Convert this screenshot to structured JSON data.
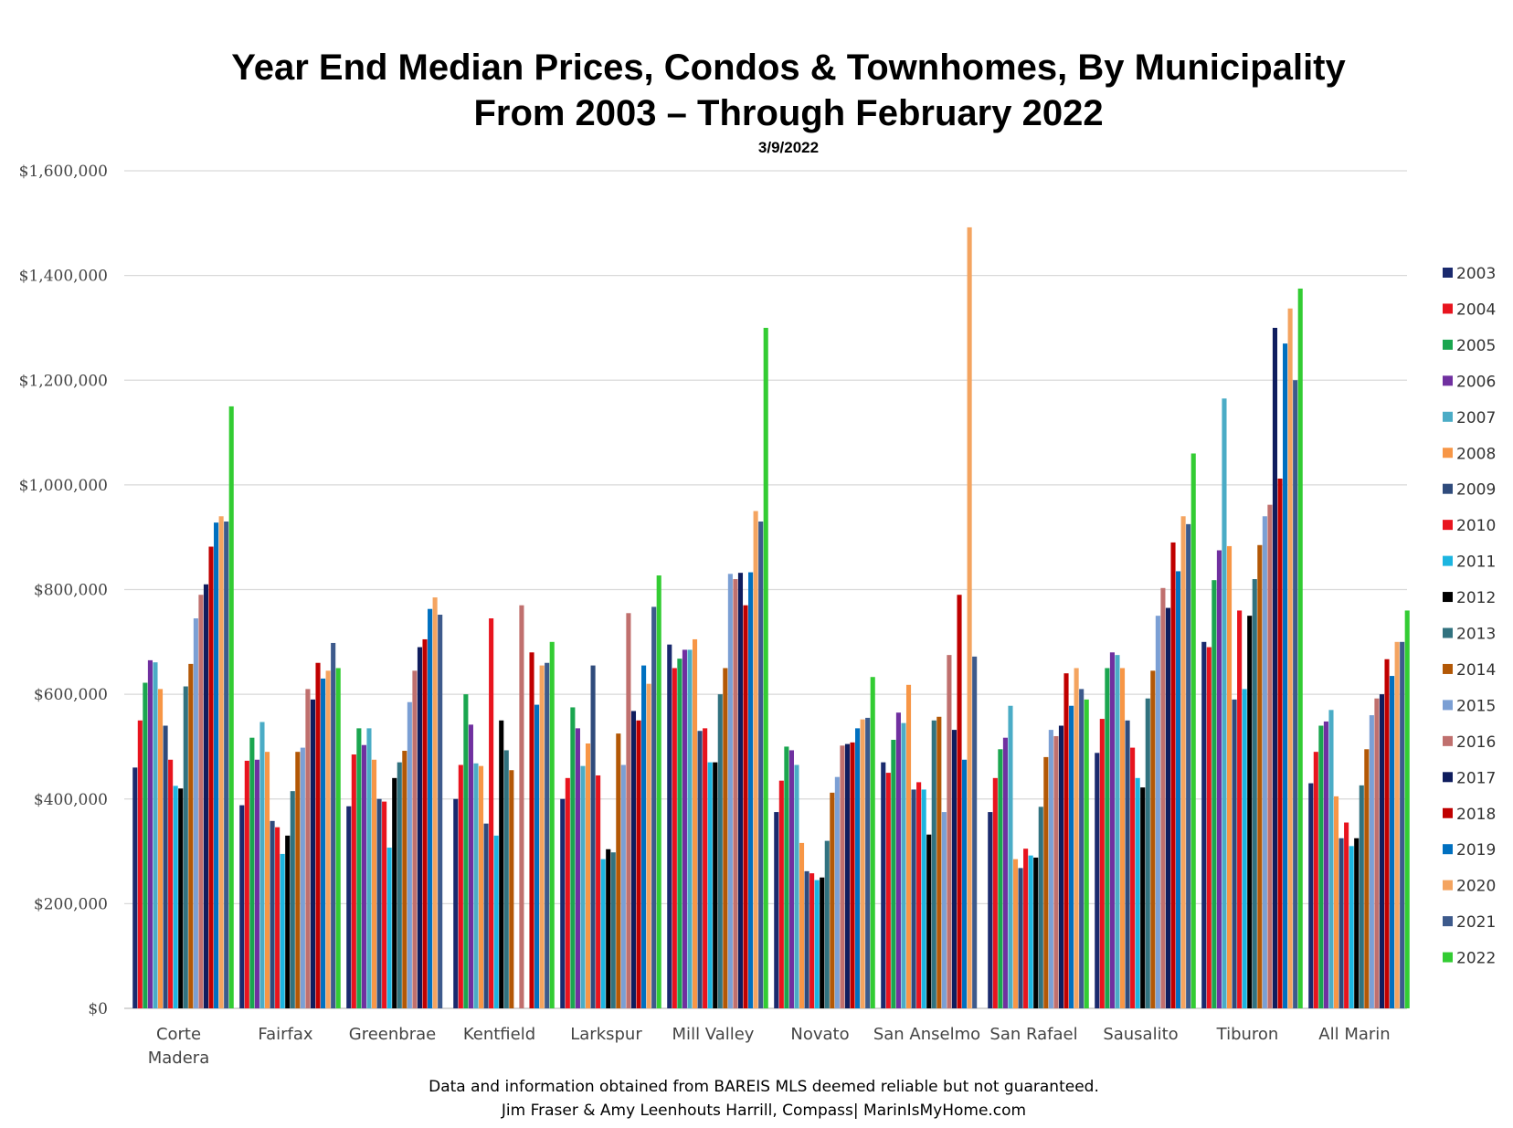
{
  "chart_data": {
    "type": "bar",
    "title_line1": "Year End Median Prices, Condos & Townhomes, By Municipality",
    "title_line2": "From 2003 – Through February 2022",
    "subtitle": "3/9/2022",
    "footer_line1": "Data and information obtained from BAREIS MLS deemed reliable but not guaranteed.",
    "footer_line2": "Jim Fraser & Amy Leenhouts Harrill, Compass| MarinIsMyHome.com",
    "ylim": [
      0,
      1600000
    ],
    "yticks": [
      0,
      200000,
      400000,
      600000,
      800000,
      1000000,
      1200000,
      1400000,
      1600000
    ],
    "ytick_labels": [
      "$0",
      "$200,000",
      "$400,000",
      "$600,000",
      "$800,000",
      "$1,000,000",
      "$1,200,000",
      "$1,400,000",
      "$1,600,000"
    ],
    "grid": true,
    "legend_position": "right",
    "categories": [
      "Corte\nMadera",
      "Fairfax",
      "Greenbrae",
      "Kentfield",
      "Larkspur",
      "Mill Valley",
      "Novato",
      "San Anselmo",
      "San Rafael",
      "Sausalito",
      "Tiburon",
      "All Marin"
    ],
    "series": [
      {
        "name": "2003",
        "color": "#1a2a6e",
        "values": [
          460000,
          388000,
          386000,
          400000,
          400000,
          695000,
          375000,
          470000,
          375000,
          488000,
          700000,
          430000
        ]
      },
      {
        "name": "2004",
        "color": "#e8141e",
        "values": [
          550000,
          473000,
          485000,
          465000,
          440000,
          650000,
          435000,
          450000,
          440000,
          553000,
          690000,
          490000
        ]
      },
      {
        "name": "2005",
        "color": "#1aa64f",
        "values": [
          622000,
          517000,
          535000,
          600000,
          575000,
          668000,
          500000,
          513000,
          495000,
          650000,
          818000,
          540000
        ]
      },
      {
        "name": "2006",
        "color": "#7030a0",
        "values": [
          665000,
          475000,
          503000,
          542000,
          535000,
          685000,
          493000,
          565000,
          517000,
          680000,
          875000,
          548000
        ]
      },
      {
        "name": "2007",
        "color": "#4bacc6",
        "values": [
          661000,
          547000,
          535000,
          468000,
          463000,
          685000,
          465000,
          545000,
          578000,
          675000,
          1165000,
          570000
        ]
      },
      {
        "name": "2008",
        "color": "#f79646",
        "values": [
          610000,
          490000,
          475000,
          463000,
          506000,
          705000,
          316000,
          618000,
          285000,
          650000,
          883000,
          405000
        ]
      },
      {
        "name": "2009",
        "color": "#2f4b7c",
        "values": [
          540000,
          358000,
          400000,
          353000,
          655000,
          530000,
          262000,
          418000,
          268000,
          550000,
          590000,
          325000
        ]
      },
      {
        "name": "2010",
        "color": "#e8141e",
        "values": [
          475000,
          346000,
          395000,
          745000,
          445000,
          535000,
          258000,
          432000,
          305000,
          498000,
          760000,
          355000
        ]
      },
      {
        "name": "2011",
        "color": "#1cb5e0",
        "values": [
          425000,
          295000,
          307000,
          330000,
          285000,
          470000,
          245000,
          418000,
          292000,
          440000,
          610000,
          310000
        ]
      },
      {
        "name": "2012",
        "color": "#000000",
        "values": [
          420000,
          330000,
          440000,
          550000,
          304000,
          470000,
          250000,
          332000,
          288000,
          422000,
          750000,
          325000
        ]
      },
      {
        "name": "2013",
        "color": "#31727f",
        "values": [
          615000,
          415000,
          470000,
          493000,
          298000,
          600000,
          320000,
          550000,
          385000,
          592000,
          820000,
          426000
        ]
      },
      {
        "name": "2014",
        "color": "#b35806",
        "values": [
          658000,
          490000,
          492000,
          455000,
          525000,
          650000,
          412000,
          557000,
          480000,
          645000,
          885000,
          495000
        ]
      },
      {
        "name": "2015",
        "color": "#7b9fd4",
        "values": [
          745000,
          498000,
          585000,
          0,
          465000,
          830000,
          442000,
          375000,
          532000,
          750000,
          940000,
          560000
        ]
      },
      {
        "name": "2016",
        "color": "#c0706e",
        "values": [
          790000,
          610000,
          645000,
          770000,
          755000,
          820000,
          502000,
          675000,
          520000,
          803000,
          962000,
          592000
        ]
      },
      {
        "name": "2017",
        "color": "#0f1d5e",
        "values": [
          810000,
          590000,
          690000,
          0,
          568000,
          832000,
          505000,
          532000,
          540000,
          765000,
          1300000,
          600000
        ]
      },
      {
        "name": "2018",
        "color": "#c00000",
        "values": [
          882000,
          660000,
          705000,
          680000,
          550000,
          770000,
          508000,
          790000,
          640000,
          890000,
          1012000,
          667000
        ]
      },
      {
        "name": "2019",
        "color": "#0070c0",
        "values": [
          928000,
          630000,
          763000,
          580000,
          655000,
          833000,
          535000,
          475000,
          578000,
          835000,
          1270000,
          635000
        ]
      },
      {
        "name": "2020",
        "color": "#f4a460",
        "values": [
          940000,
          645000,
          785000,
          655000,
          620000,
          950000,
          552000,
          1492000,
          650000,
          940000,
          1337000,
          700000
        ]
      },
      {
        "name": "2021",
        "color": "#3d5a8c",
        "values": [
          930000,
          698000,
          752000,
          660000,
          767000,
          930000,
          555000,
          672000,
          610000,
          925000,
          1200000,
          700000
        ]
      },
      {
        "name": "2022",
        "color": "#33cc33",
        "values": [
          1150000,
          650000,
          0,
          700000,
          827000,
          1300000,
          633000,
          0,
          590000,
          1060000,
          1375000,
          760000
        ]
      }
    ]
  }
}
